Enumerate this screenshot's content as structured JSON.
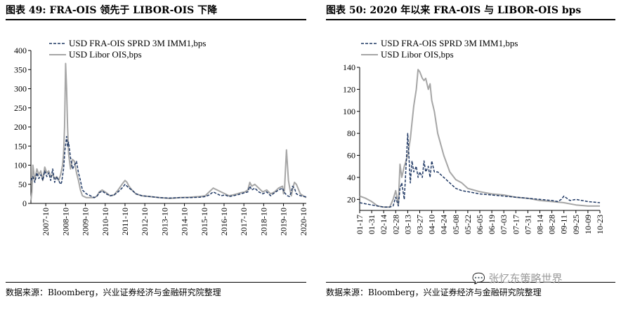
{
  "titles": {
    "left": "图表 49:  FRA-OIS 领先于 LIBOR-OIS 下降",
    "right": "图表 50: 2020 年以来 FRA-OIS 与 LIBOR-OIS bps"
  },
  "sources": {
    "left": "数据来源：Bloomberg，兴业证券经济与金融研究院整理",
    "right": "数据来源：Bloomberg，兴业证券经济与金融研究院整理"
  },
  "watermark": "张忆东策略世界",
  "colors": {
    "fra": "#1f3864",
    "libor": "#a6a6a6",
    "axis": "#000000"
  },
  "chart_data": [
    {
      "type": "line",
      "ylim": [
        0,
        400
      ],
      "yticks": [
        0,
        50,
        100,
        150,
        200,
        250,
        300,
        350,
        400
      ],
      "xlim": [
        2007.0,
        2020.9
      ],
      "xticks": [
        2007.75,
        2008.75,
        2009.75,
        2010.75,
        2011.75,
        2012.75,
        2013.75,
        2014.75,
        2015.75,
        2016.75,
        2017.75,
        2018.75,
        2019.75,
        2020.75
      ],
      "xticklabels": [
        "2007-10",
        "2008-10",
        "2009-10",
        "2010-10",
        "2011-10",
        "2012-10",
        "2013-10",
        "2014-10",
        "2015-10",
        "2016-10",
        "2017-10",
        "2018-10",
        "2019-10",
        "2020-10"
      ],
      "legend_position": "top",
      "series": [
        {
          "name": "USD FRA-OIS SPRD 3M IMM1,bps",
          "style": "dashed",
          "x": [
            2007.0,
            2007.1,
            2007.2,
            2007.3,
            2007.4,
            2007.5,
            2007.6,
            2007.7,
            2007.8,
            2007.9,
            2008.0,
            2008.1,
            2008.2,
            2008.3,
            2008.4,
            2008.5,
            2008.55,
            2008.65,
            2008.72,
            2008.8,
            2008.85,
            2008.9,
            2009.0,
            2009.1,
            2009.2,
            2009.3,
            2009.4,
            2009.5,
            2009.6,
            2009.8,
            2010.0,
            2010.2,
            2010.35,
            2010.45,
            2010.6,
            2010.8,
            2011.0,
            2011.2,
            2011.4,
            2011.6,
            2011.75,
            2011.85,
            2011.95,
            2012.1,
            2012.3,
            2012.6,
            2013.0,
            2013.5,
            2014.0,
            2014.5,
            2015.0,
            2015.5,
            2015.8,
            2016.0,
            2016.2,
            2016.4,
            2016.6,
            2016.8,
            2017.0,
            2017.2,
            2017.4,
            2017.6,
            2017.8,
            2017.95,
            2018.05,
            2018.15,
            2018.3,
            2018.5,
            2018.7,
            2018.9,
            2019.1,
            2019.3,
            2019.5,
            2019.7,
            2019.78,
            2019.85,
            2019.95,
            2020.05,
            2020.15,
            2020.2,
            2020.3,
            2020.4,
            2020.6,
            2020.8,
            2020.9
          ],
          "y": [
            60,
            70,
            55,
            80,
            65,
            75,
            60,
            85,
            70,
            80,
            60,
            90,
            55,
            70,
            60,
            50,
            55,
            90,
            140,
            175,
            150,
            160,
            120,
            90,
            100,
            110,
            80,
            60,
            35,
            25,
            20,
            15,
            20,
            28,
            32,
            25,
            20,
            22,
            30,
            40,
            50,
            45,
            40,
            35,
            25,
            20,
            18,
            15,
            14,
            15,
            15,
            16,
            18,
            22,
            30,
            25,
            20,
            22,
            18,
            20,
            22,
            25,
            28,
            30,
            45,
            35,
            40,
            30,
            25,
            30,
            20,
            28,
            35,
            40,
            30,
            25,
            20,
            18,
            30,
            45,
            40,
            25,
            20,
            18,
            17
          ]
        },
        {
          "name": "USD Libor OIS,bps",
          "style": "solid",
          "x": [
            2007.0,
            2007.05,
            2007.1,
            2007.2,
            2007.3,
            2007.4,
            2007.5,
            2007.6,
            2007.7,
            2007.8,
            2007.9,
            2008.0,
            2008.1,
            2008.2,
            2008.3,
            2008.4,
            2008.5,
            2008.6,
            2008.65,
            2008.7,
            2008.75,
            2008.8,
            2008.85,
            2008.9,
            2009.0,
            2009.1,
            2009.2,
            2009.3,
            2009.4,
            2009.5,
            2009.6,
            2009.8,
            2010.0,
            2010.2,
            2010.35,
            2010.45,
            2010.6,
            2010.8,
            2011.0,
            2011.2,
            2011.4,
            2011.6,
            2011.75,
            2011.85,
            2011.95,
            2012.1,
            2012.3,
            2012.6,
            2013.0,
            2013.5,
            2014.0,
            2014.5,
            2015.0,
            2015.5,
            2015.8,
            2016.0,
            2016.2,
            2016.4,
            2016.6,
            2016.8,
            2017.0,
            2017.2,
            2017.4,
            2017.6,
            2017.8,
            2017.95,
            2018.05,
            2018.15,
            2018.3,
            2018.5,
            2018.7,
            2018.9,
            2019.1,
            2019.3,
            2019.5,
            2019.7,
            2019.75,
            2019.8,
            2019.85,
            2019.9,
            2020.0,
            2020.1,
            2020.15,
            2020.2,
            2020.3,
            2020.4,
            2020.6,
            2020.8,
            2020.9
          ],
          "y": [
            8,
            30,
            100,
            60,
            90,
            75,
            85,
            60,
            95,
            80,
            85,
            70,
            75,
            65,
            70,
            60,
            75,
            100,
            130,
            200,
            366,
            300,
            200,
            130,
            90,
            115,
            110,
            80,
            60,
            35,
            20,
            15,
            15,
            15,
            20,
            30,
            35,
            28,
            20,
            22,
            35,
            50,
            60,
            55,
            45,
            35,
            25,
            20,
            18,
            15,
            13,
            15,
            16,
            18,
            20,
            30,
            40,
            35,
            30,
            25,
            20,
            22,
            25,
            28,
            30,
            35,
            55,
            45,
            50,
            40,
            30,
            35,
            25,
            30,
            40,
            45,
            25,
            35,
            90,
            140,
            60,
            30,
            20,
            35,
            55,
            50,
            25,
            18,
            15
          ]
        }
      ]
    },
    {
      "type": "line",
      "ylim": [
        10,
        140
      ],
      "yticks": [
        20,
        40,
        60,
        80,
        100,
        120,
        140
      ],
      "xlim": [
        "01-17",
        "10-23"
      ],
      "xticklabels": [
        "01-17",
        "01-31",
        "02-14",
        "02-28",
        "03-13",
        "03-27",
        "04-10",
        "04-24",
        "05-08",
        "05-22",
        "06-05",
        "06-19",
        "07-03",
        "07-17",
        "07-31",
        "08-14",
        "08-28",
        "09-11",
        "09-25",
        "10-09",
        "10-23"
      ],
      "legend_position": "top",
      "series": [
        {
          "name": "USD FRA-OIS SPRD 3M IMM1,bps",
          "style": "dashed",
          "x": [
            "01-17",
            "01-24",
            "01-31",
            "02-07",
            "02-14",
            "02-21",
            "02-25",
            "02-28",
            "03-02",
            "03-04",
            "03-06",
            "03-09",
            "03-11",
            "03-13",
            "03-16",
            "03-18",
            "03-20",
            "03-23",
            "03-25",
            "03-27",
            "03-30",
            "04-01",
            "04-03",
            "04-06",
            "04-08",
            "04-10",
            "04-13",
            "04-17",
            "04-24",
            "05-01",
            "05-08",
            "05-15",
            "05-22",
            "06-05",
            "06-19",
            "07-03",
            "07-17",
            "07-31",
            "08-14",
            "08-28",
            "09-04",
            "09-08",
            "09-11",
            "09-18",
            "09-25",
            "10-09",
            "10-23"
          ],
          "y": [
            17,
            16,
            15,
            14,
            13,
            13,
            14,
            22,
            14,
            30,
            35,
            20,
            50,
            80,
            35,
            55,
            45,
            50,
            40,
            45,
            40,
            55,
            45,
            50,
            40,
            55,
            45,
            45,
            40,
            35,
            30,
            28,
            27,
            25,
            24,
            23,
            22,
            21,
            20,
            19,
            18,
            20,
            23,
            19,
            20,
            18,
            17
          ]
        },
        {
          "name": "USD Libor OIS,bps",
          "style": "solid",
          "x": [
            "01-17",
            "01-24",
            "01-31",
            "02-07",
            "02-14",
            "02-21",
            "02-25",
            "02-28",
            "03-02",
            "03-04",
            "03-06",
            "03-09",
            "03-11",
            "03-13",
            "03-16",
            "03-18",
            "03-20",
            "03-23",
            "03-25",
            "03-27",
            "03-30",
            "04-01",
            "04-03",
            "04-06",
            "04-08",
            "04-10",
            "04-13",
            "04-17",
            "04-24",
            "05-01",
            "05-08",
            "05-15",
            "05-22",
            "06-05",
            "06-19",
            "07-03",
            "07-17",
            "07-31",
            "08-14",
            "08-28",
            "09-11",
            "09-25",
            "10-09",
            "10-23"
          ],
          "y": [
            23,
            21,
            18,
            14,
            13,
            13,
            20,
            28,
            15,
            52,
            40,
            50,
            55,
            60,
            75,
            90,
            105,
            120,
            138,
            136,
            130,
            128,
            130,
            120,
            125,
            110,
            100,
            80,
            60,
            45,
            38,
            35,
            30,
            27,
            25,
            24,
            22,
            21,
            19,
            18,
            17,
            15,
            14,
            14
          ]
        }
      ]
    }
  ]
}
